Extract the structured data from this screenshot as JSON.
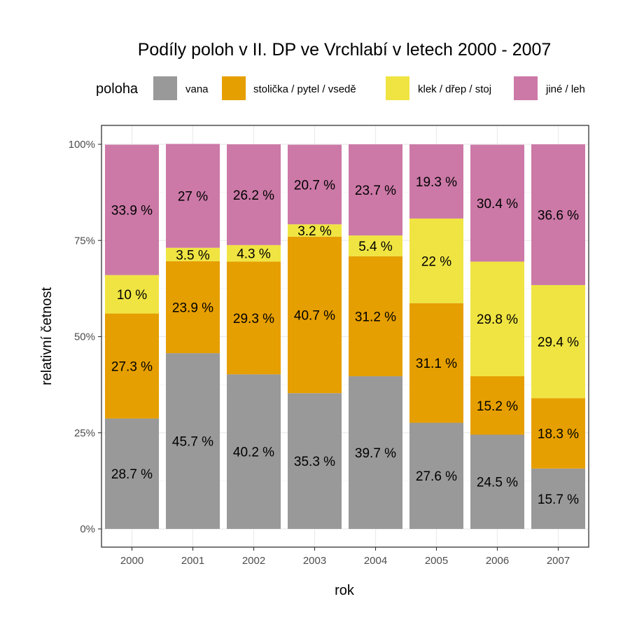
{
  "chart_data": {
    "type": "bar",
    "stacked": true,
    "normalized": true,
    "title": "Podíly poloh v II. DP ve Vrchlabí v letech 2000 - 2007",
    "xlabel": "rok",
    "ylabel": "relativní četnost",
    "categories": [
      "2000",
      "2001",
      "2002",
      "2003",
      "2004",
      "2005",
      "2006",
      "2007"
    ],
    "ylim": [
      0,
      100
    ],
    "yticks": [
      "0%",
      "25%",
      "50%",
      "75%",
      "100%"
    ],
    "grid": true,
    "legend": {
      "title": "poloha",
      "position": "top"
    },
    "series": [
      {
        "name": "vana",
        "color": "#999999",
        "values": [
          28.7,
          45.7,
          40.2,
          35.3,
          39.7,
          27.6,
          24.5,
          15.7
        ],
        "labels": [
          "28.7 %",
          "45.7 %",
          "40.2 %",
          "35.3 %",
          "39.7 %",
          "27.6 %",
          "24.5 %",
          "15.7 %"
        ]
      },
      {
        "name": "stolička / pytel / vsedě",
        "color": "#E69F00",
        "values": [
          27.3,
          23.9,
          29.3,
          40.7,
          31.2,
          31.1,
          15.2,
          18.3
        ],
        "labels": [
          "27.3 %",
          "23.9 %",
          "29.3 %",
          "40.7 %",
          "31.2 %",
          "31.1 %",
          "15.2 %",
          "18.3 %"
        ]
      },
      {
        "name": "klek / dřep / stoj",
        "color": "#F0E442",
        "values": [
          10,
          3.5,
          4.3,
          3.2,
          5.4,
          22,
          29.8,
          29.4
        ],
        "labels": [
          "10 %",
          "3.5 %",
          "4.3 %",
          "3.2 %",
          "5.4 %",
          "22 %",
          "29.8 %",
          "29.4 %"
        ]
      },
      {
        "name": "jiné / leh",
        "color": "#CC79A7",
        "values": [
          33.9,
          27,
          26.2,
          20.7,
          23.7,
          19.3,
          30.4,
          36.6
        ],
        "labels": [
          "33.9 %",
          "27 %",
          "26.2 %",
          "20.7 %",
          "23.7 %",
          "19.3 %",
          "30.4 %",
          "36.6 %"
        ]
      }
    ]
  }
}
